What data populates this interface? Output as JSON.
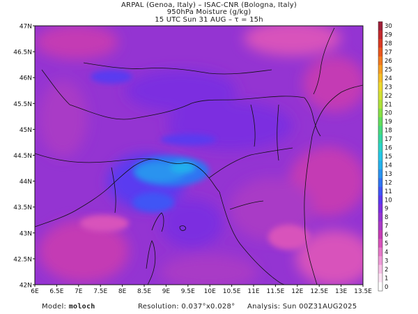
{
  "header": {
    "line1": "ARPAL (Genoa, Italy)  –  ISAC-CNR (Bologna, Italy)",
    "line2": "950hPa Moisture (g/kg)",
    "line3": "15 UTC Sun 31 AUG  –  τ = 15h"
  },
  "axes": {
    "lat_labels": [
      "47N",
      "46.5N",
      "46N",
      "45.5N",
      "45N",
      "44.5N",
      "44N",
      "43.5N",
      "43N",
      "42.5N",
      "42N"
    ],
    "lon_labels": [
      "6E",
      "6.5E",
      "7E",
      "7.5E",
      "8E",
      "8.5E",
      "9E",
      "9.5E",
      "10E",
      "10.5E",
      "11E",
      "11.5E",
      "12E",
      "12.5E",
      "13E",
      "13.5E"
    ]
  },
  "colorbar": {
    "labels": [
      "30",
      "29",
      "28",
      "27",
      "26",
      "25",
      "24",
      "23",
      "22",
      "21",
      "20",
      "19",
      "18",
      "17",
      "16",
      "15",
      "14",
      "13",
      "12",
      "11",
      "10",
      "9",
      "8",
      "7",
      "6",
      "5",
      "4",
      "3",
      "2",
      "1",
      "0"
    ],
    "colors": {
      "0": "#ffffff",
      "1": "#fde3f4",
      "2": "#f7c0e6",
      "3": "#ef9ad7",
      "4": "#e677c8",
      "5": "#d852bb",
      "6": "#c43bb4",
      "7": "#a93ac6",
      "8": "#9434d2",
      "9": "#7c2fe0",
      "10": "#5a3af0",
      "11": "#3f55f5",
      "12": "#2f74f2",
      "13": "#2a93ef",
      "14": "#24b1ec",
      "15": "#25c6e6",
      "16": "#2bd2c8",
      "17": "#34d6a3",
      "18": "#47d97e",
      "19": "#62dc5c",
      "20": "#86df45",
      "21": "#aee13a",
      "22": "#d2e034",
      "23": "#ecd92d",
      "24": "#f5be27",
      "25": "#f69e22",
      "26": "#f27a1f",
      "27": "#e9561d",
      "28": "#d93a23",
      "29": "#c22a2e",
      "30": "#9f1f39"
    }
  },
  "footer": {
    "model_label": "Model:",
    "model_name": "moloch",
    "resolution_label": "Resolution:",
    "resolution_value": "0.037°x0.028°",
    "analysis_label": "Analysis:",
    "analysis_value": "Sun 00Z31AUG2025"
  }
}
